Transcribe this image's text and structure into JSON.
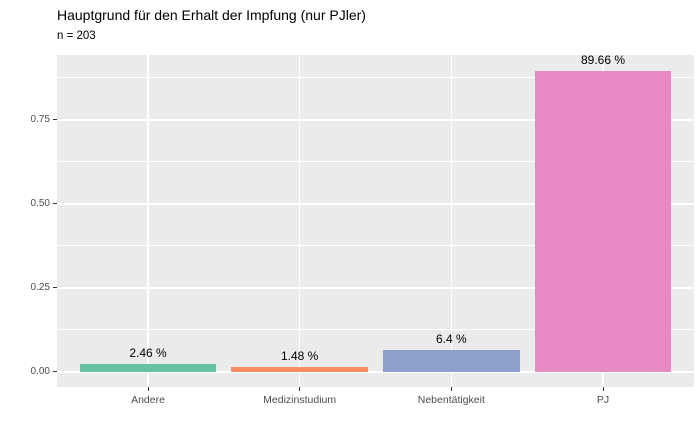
{
  "page": {
    "background": "#FFFFFF"
  },
  "chart_data": {
    "type": "bar",
    "title": "Hauptgrund für den Erhalt der Impfung (nur PJler)",
    "subtitle": "n = 203",
    "categories": [
      "Andere",
      "Medizinstudium",
      "Nebentätigkeit",
      "PJ"
    ],
    "values": [
      0.0246,
      0.0148,
      0.064,
      0.8966
    ],
    "bar_labels": [
      "2.46 %",
      "1.48 %",
      "6.4 %",
      "89.66 %"
    ],
    "bar_colors": [
      "#66C2A5",
      "#FC8D62",
      "#8DA0CB",
      "#E78AC3"
    ],
    "xlabel": "",
    "ylabel": "",
    "ylim": [
      -0.045,
      0.943
    ],
    "y_major_ticks": [
      0,
      0.25,
      0.5,
      0.75
    ],
    "y_tick_labels": [
      "0.00",
      "0.25",
      "0.50",
      "0.75"
    ],
    "y_minor_ticks": [
      0.125,
      0.375,
      0.625,
      0.875
    ],
    "bar_rel_width": 0.9,
    "x_axis_expand": 0.6,
    "grid": true,
    "legend_position": "none",
    "panel_bg": "#EBEBEB",
    "grid_color": "#FFFFFF",
    "axis_text_color": "#4D4D4D",
    "tick_color": "#333333",
    "value_label_color": "#000000",
    "title_color": "#000000"
  }
}
